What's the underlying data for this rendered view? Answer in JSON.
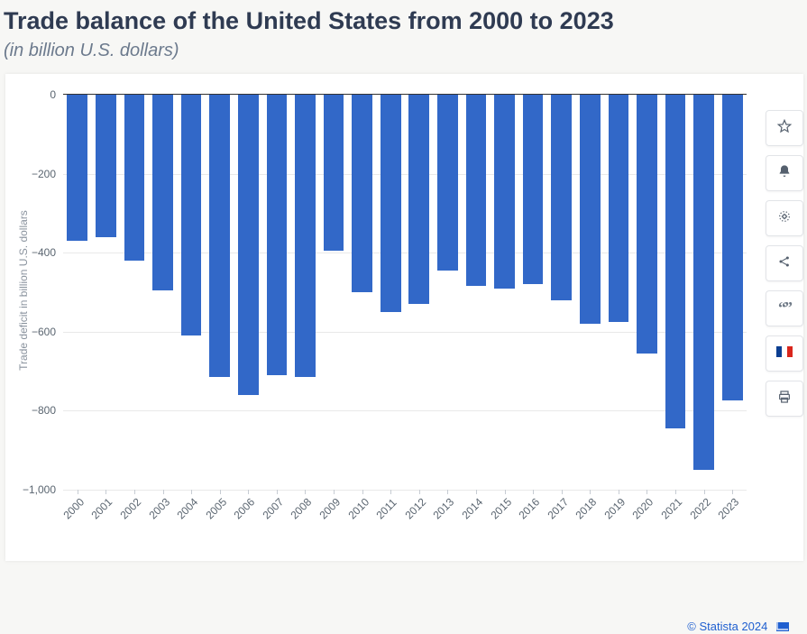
{
  "title": "Trade balance of the United States from 2000 to 2023",
  "subtitle": "(in billion U.S. dollars)",
  "ylabel": "Trade deficit in billion U.S. dollars",
  "footer": {
    "text": "© Statista 2024"
  },
  "chart": {
    "type": "bar",
    "categories": [
      "2000",
      "2001",
      "2002",
      "2003",
      "2004",
      "2005",
      "2006",
      "2007",
      "2008",
      "2009",
      "2010",
      "2011",
      "2012",
      "2013",
      "2014",
      "2015",
      "2016",
      "2017",
      "2018",
      "2019",
      "2020",
      "2021",
      "2022",
      "2023"
    ],
    "values": [
      -370,
      -360,
      -420,
      -495,
      -610,
      -715,
      -760,
      -710,
      -715,
      -395,
      -500,
      -550,
      -530,
      -445,
      -485,
      -490,
      -480,
      -520,
      -580,
      -575,
      -655,
      -845,
      -950,
      -775
    ],
    "ylim": [
      -1000,
      0
    ],
    "yticks": [
      0,
      -200,
      -400,
      -600,
      -800,
      -1000
    ],
    "ytick_labels": [
      "0",
      "−200",
      "−400",
      "−600",
      "−800",
      "−1,000"
    ],
    "bar_color": "#3268c8",
    "grid_color": "#e9e9e9",
    "axis_color": "#333333",
    "tick_font_size": 12,
    "label_color": "#8a939e",
    "background_color": "#ffffff",
    "bar_gap_ratio": 0.28
  },
  "toolbar": {
    "buttons": [
      {
        "name": "favorite",
        "icon": "star"
      },
      {
        "name": "notify",
        "icon": "bell"
      },
      {
        "name": "settings",
        "icon": "gear"
      },
      {
        "name": "share",
        "icon": "share"
      },
      {
        "name": "cite",
        "icon": "quote"
      },
      {
        "name": "language",
        "icon": "flag-fr"
      },
      {
        "name": "print",
        "icon": "print"
      }
    ]
  }
}
